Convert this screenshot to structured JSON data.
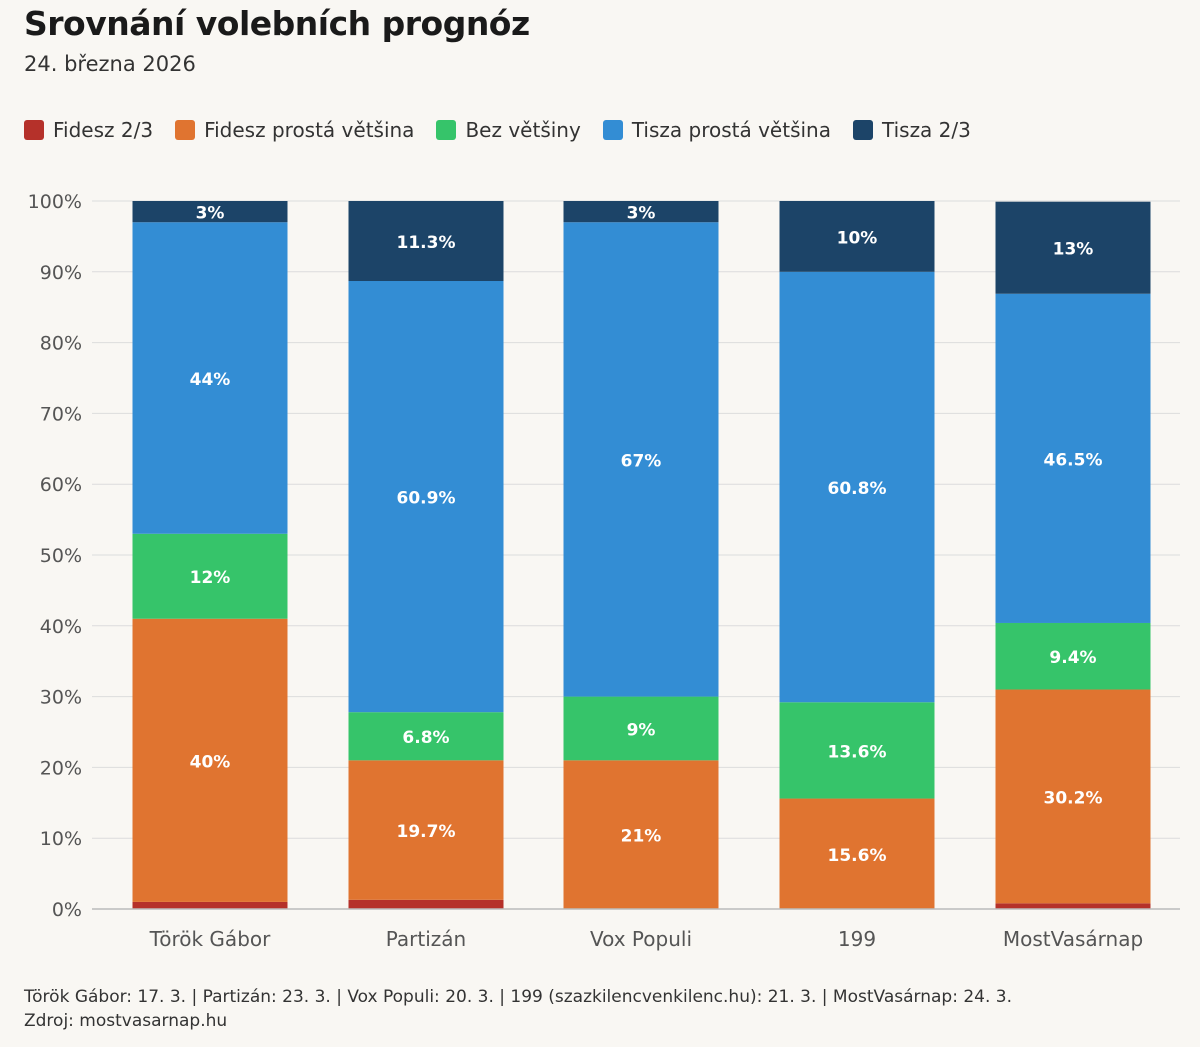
{
  "chart_data": {
    "type": "bar",
    "stacked": true,
    "title": "Srovnání volebních prognóz",
    "subtitle": "24. března 2026",
    "categories": [
      "Török Gábor",
      "Partizán",
      "Vox Populi",
      "199",
      "MostVasárnap"
    ],
    "series": [
      {
        "name": "Fidesz 2/3",
        "color": "#b5312a",
        "values": [
          1,
          1.3,
          0,
          0,
          0.8
        ],
        "labels": [
          "",
          "",
          "",
          "",
          ""
        ]
      },
      {
        "name": "Fidesz prostá většina",
        "color": "#e07430",
        "values": [
          40,
          19.7,
          21,
          15.6,
          30.2
        ],
        "labels": [
          "40%",
          "19.7%",
          "21%",
          "15.6%",
          "30.2%"
        ]
      },
      {
        "name": "Bez většiny",
        "color": "#36c46a",
        "values": [
          12,
          6.8,
          9,
          13.6,
          9.4
        ],
        "labels": [
          "12%",
          "6.8%",
          "9%",
          "13.6%",
          "9.4%"
        ]
      },
      {
        "name": "Tisza prostá většina",
        "color": "#338dd4",
        "values": [
          44,
          60.9,
          67,
          60.8,
          46.5
        ],
        "labels": [
          "44%",
          "60.9%",
          "67%",
          "60.8%",
          "46.5%"
        ]
      },
      {
        "name": "Tisza 2/3",
        "color": "#1c4468",
        "values": [
          3,
          11.3,
          3,
          10,
          13
        ],
        "labels": [
          "3%",
          "11.3%",
          "3%",
          "10%",
          "13%"
        ]
      }
    ],
    "ylim": [
      0,
      100
    ],
    "yticks": [
      "0%",
      "10%",
      "20%",
      "30%",
      "40%",
      "50%",
      "60%",
      "70%",
      "80%",
      "90%",
      "100%"
    ],
    "grid": true,
    "legend_position": "top-left"
  },
  "footnote": {
    "line1": "Török Gábor: 17. 3. | Partizán: 23. 3. | Vox Populi: 20. 3. | 199 (szazkilencvenkilenc.hu): 21. 3. | MostVasárnap: 24. 3.",
    "line2": "Zdroj: mostvasarnap.hu"
  }
}
